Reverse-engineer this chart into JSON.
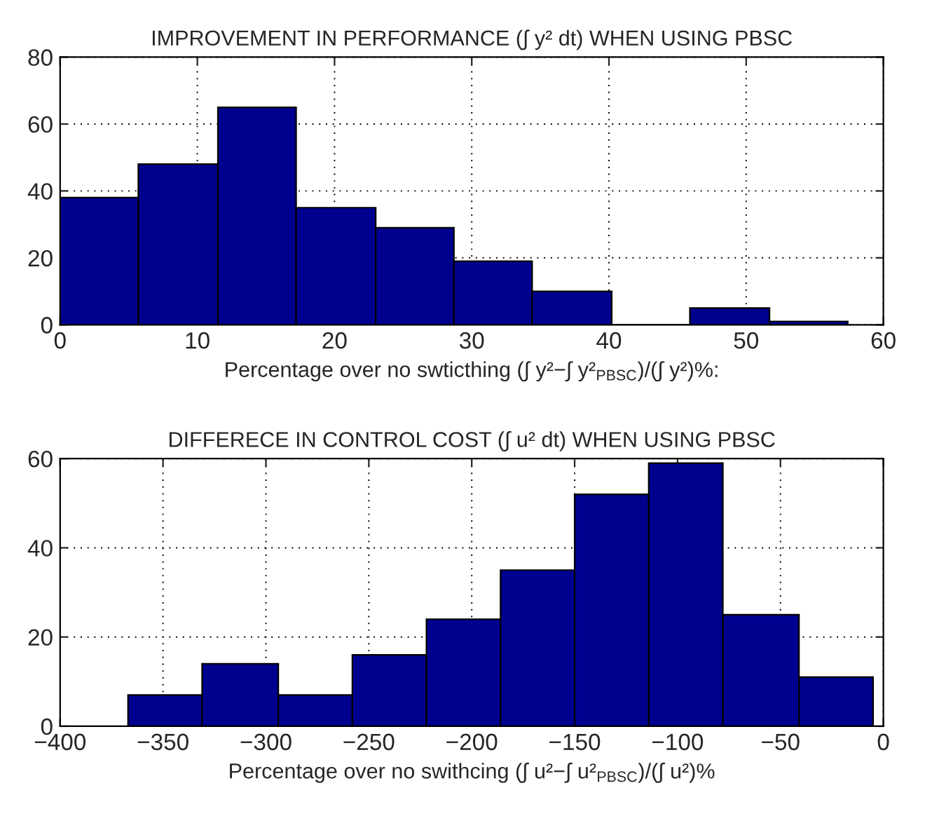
{
  "chart_data": [
    {
      "type": "histogram",
      "title": "IMPROVEMENT IN PERFORMANCE (∫ y² dt) WHEN USING PBSC",
      "xlabel": "Percentage over no swticthing (∫ y²−∫ y²$_{PBSC}$)/(∫ y²)%:",
      "bins": [
        0,
        5.7,
        11.5,
        17.2,
        23,
        28.7,
        34.4,
        40.2,
        45.9,
        51.7,
        57.4
      ],
      "values": [
        38,
        48,
        65,
        35,
        29,
        19,
        10,
        0,
        5,
        1
      ],
      "color": "#00008f",
      "xlim": [
        0,
        60
      ],
      "xticks": [
        0,
        10,
        20,
        30,
        40,
        50,
        60
      ],
      "ylim": [
        0,
        80
      ],
      "yticks": [
        0,
        20,
        40,
        60,
        80
      ],
      "grid": true
    },
    {
      "type": "histogram",
      "title": "DIFFERECE IN CONTROL COST (∫ u² dt) WHEN USING PBSC",
      "xlabel": "Percentage over no swithcing (∫ u²−∫ u²$_{PBSC}$)/(∫ u²)%",
      "bins": [
        -367,
        -331,
        -294,
        -258,
        -222,
        -186,
        -150,
        -114,
        -78,
        -41,
        -5
      ],
      "values": [
        7,
        14,
        7,
        16,
        24,
        35,
        52,
        59,
        25,
        11
      ],
      "color": "#00008f",
      "xlim": [
        -400,
        0
      ],
      "xticks": [
        {
          "value": -400,
          "label": "−400"
        },
        {
          "value": -350,
          "label": "−350"
        },
        {
          "value": -300,
          "label": "−300"
        },
        {
          "value": -250,
          "label": "−250"
        },
        {
          "value": -200,
          "label": "−200"
        },
        {
          "value": -150,
          "label": "−150"
        },
        {
          "value": -100,
          "label": "−100"
        },
        {
          "value": -50,
          "label": "−50"
        },
        0
      ],
      "ylim": [
        0,
        60
      ],
      "yticks": [
        0,
        20,
        40,
        60
      ],
      "grid": true
    }
  ]
}
